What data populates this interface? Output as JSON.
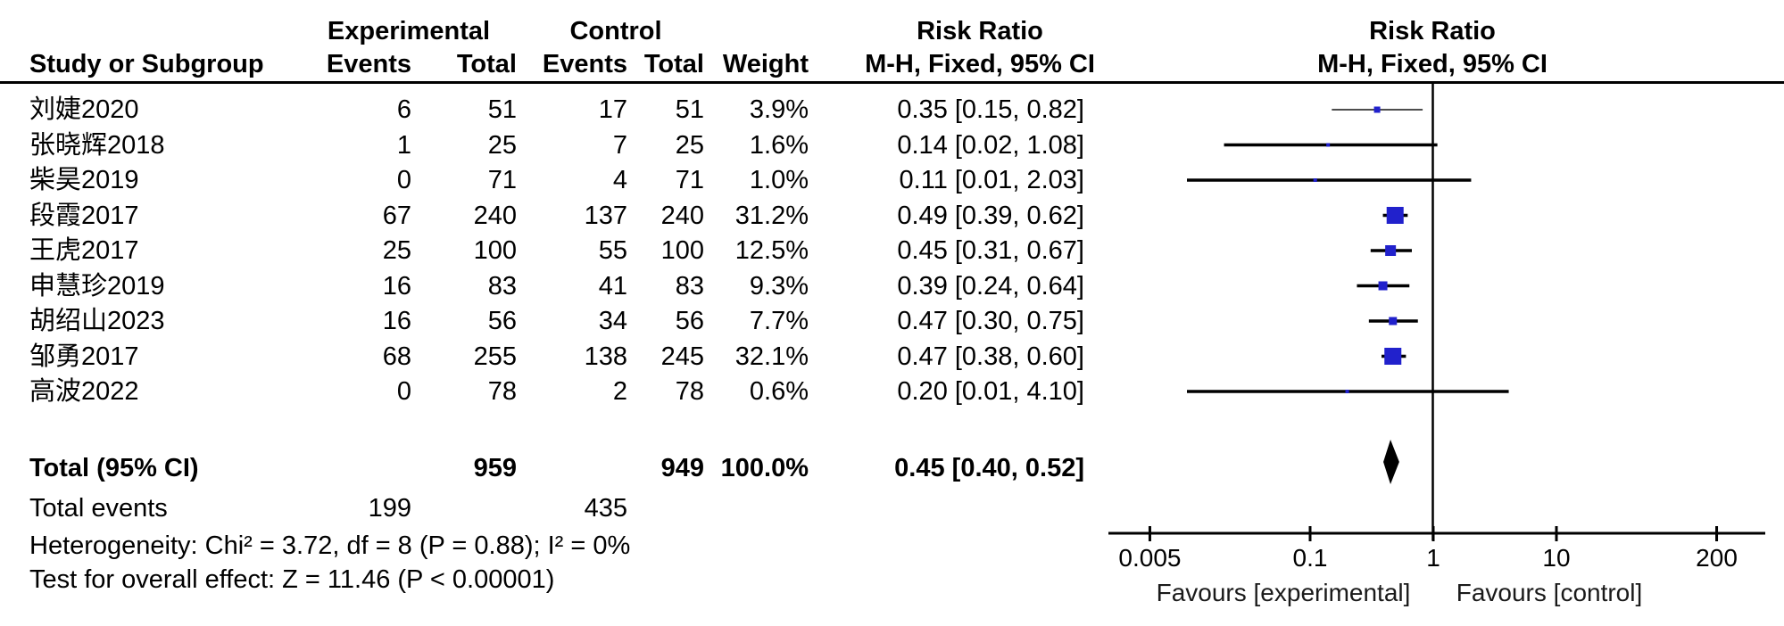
{
  "chart_data": {
    "type": "forest",
    "effect_measure": "Risk Ratio",
    "method": "M-H, Fixed, 95% CI",
    "group_labels": {
      "experimental": "Experimental",
      "control": "Control"
    },
    "column_headers": {
      "study": "Study or Subgroup",
      "events": "Events",
      "total": "Total",
      "weight": "Weight",
      "risk_ratio_line1": "Risk Ratio",
      "risk_ratio_line2": "M-H, Fixed, 95% CI"
    },
    "studies": [
      {
        "name": "刘婕2020",
        "exp_events": 6,
        "exp_total": 51,
        "ctrl_events": 17,
        "ctrl_total": 51,
        "weight_label": "3.9%",
        "weight_pct": 3.9,
        "rr": 0.35,
        "ci_low": 0.15,
        "ci_high": 0.82,
        "rr_label": "0.35 [0.15, 0.82]",
        "ci_style": "thin"
      },
      {
        "name": "张晓辉2018",
        "exp_events": 1,
        "exp_total": 25,
        "ctrl_events": 7,
        "ctrl_total": 25,
        "weight_label": "1.6%",
        "weight_pct": 1.6,
        "rr": 0.14,
        "ci_low": 0.02,
        "ci_high": 1.08,
        "rr_label": "0.14 [0.02, 1.08]",
        "ci_style": "normal"
      },
      {
        "name": "柴昊2019",
        "exp_events": 0,
        "exp_total": 71,
        "ctrl_events": 4,
        "ctrl_total": 71,
        "weight_label": "1.0%",
        "weight_pct": 1.0,
        "rr": 0.11,
        "ci_low": 0.01,
        "ci_high": 2.03,
        "rr_label": "0.11 [0.01, 2.03]",
        "ci_style": "normal"
      },
      {
        "name": "段霞2017",
        "exp_events": 67,
        "exp_total": 240,
        "ctrl_events": 137,
        "ctrl_total": 240,
        "weight_label": "31.2%",
        "weight_pct": 31.2,
        "rr": 0.49,
        "ci_low": 0.39,
        "ci_high": 0.62,
        "rr_label": "0.49 [0.39, 0.62]",
        "ci_style": "normal"
      },
      {
        "name": "王虎2017",
        "exp_events": 25,
        "exp_total": 100,
        "ctrl_events": 55,
        "ctrl_total": 100,
        "weight_label": "12.5%",
        "weight_pct": 12.5,
        "rr": 0.45,
        "ci_low": 0.31,
        "ci_high": 0.67,
        "rr_label": "0.45 [0.31, 0.67]",
        "ci_style": "normal"
      },
      {
        "name": "申慧珍2019",
        "exp_events": 16,
        "exp_total": 83,
        "ctrl_events": 41,
        "ctrl_total": 83,
        "weight_label": "9.3%",
        "weight_pct": 9.3,
        "rr": 0.39,
        "ci_low": 0.24,
        "ci_high": 0.64,
        "rr_label": "0.39 [0.24, 0.64]",
        "ci_style": "normal"
      },
      {
        "name": "胡绍山2023",
        "exp_events": 16,
        "exp_total": 56,
        "ctrl_events": 34,
        "ctrl_total": 56,
        "weight_label": "7.7%",
        "weight_pct": 7.7,
        "rr": 0.47,
        "ci_low": 0.3,
        "ci_high": 0.75,
        "rr_label": "0.47 [0.30, 0.75]",
        "ci_style": "normal"
      },
      {
        "name": "邹勇2017",
        "exp_events": 68,
        "exp_total": 255,
        "ctrl_events": 138,
        "ctrl_total": 245,
        "weight_label": "32.1%",
        "weight_pct": 32.1,
        "rr": 0.47,
        "ci_low": 0.38,
        "ci_high": 0.6,
        "rr_label": "0.47 [0.38, 0.60]",
        "ci_style": "normal"
      },
      {
        "name": "高波2022",
        "exp_events": 0,
        "exp_total": 78,
        "ctrl_events": 2,
        "ctrl_total": 78,
        "weight_label": "0.6%",
        "weight_pct": 0.6,
        "rr": 0.2,
        "ci_low": 0.01,
        "ci_high": 4.1,
        "rr_label": "0.20 [0.01, 4.10]",
        "ci_style": "normal"
      }
    ],
    "total": {
      "label": "Total (95% CI)",
      "exp_total": 959,
      "ctrl_total": 949,
      "weight_label": "100.0%",
      "rr": 0.45,
      "ci_low": 0.4,
      "ci_high": 0.52,
      "rr_label": "0.45 [0.40, 0.52]"
    },
    "total_events": {
      "label": "Total events",
      "experimental": 199,
      "control": 435
    },
    "heterogeneity": "Heterogeneity: Chi² = 3.72, df = 8 (P = 0.88); I² = 0%",
    "overall_effect": "Test for overall effect: Z = 11.46 (P < 0.00001)",
    "x_axis": {
      "scale": "log",
      "ticks": [
        0.005,
        0.1,
        1,
        10,
        200
      ],
      "tick_labels": [
        "0.005",
        "0.1",
        "1",
        "10",
        "200"
      ],
      "unity_line": 1
    },
    "favours_left": "Favours [experimental]",
    "favours_right": "Favours [control]"
  },
  "colors": {
    "marker_blue": "#2121CC",
    "diamond_black": "#000000",
    "line_black": "#000000",
    "thin_ci_gray": "#4d4d4d"
  }
}
